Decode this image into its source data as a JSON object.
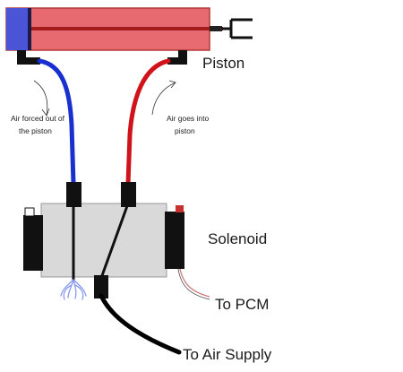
{
  "labels": {
    "piston": "Piston",
    "solenoid": "Solenoid",
    "to_pcm": "To PCM",
    "to_air_supply": "To Air Supply",
    "air_out_line1": "Air forced out of",
    "air_out_line2": "the piston",
    "air_in_line1": "Air goes into",
    "air_in_line2": "piston"
  },
  "colors": {
    "cylinder_fill": "#e66a6f",
    "cylinder_border": "#b23a3a",
    "piston_head": "#4b54d6",
    "rod": "#a61b1b",
    "exhaust_hose": "#1a2fd0",
    "supply_hose": "#d0131b",
    "solenoid_body": "#d9d9d9",
    "fitting": "#111111",
    "pcm_wire": "#c97a7a",
    "exhaust_puff": "#8899ee"
  }
}
